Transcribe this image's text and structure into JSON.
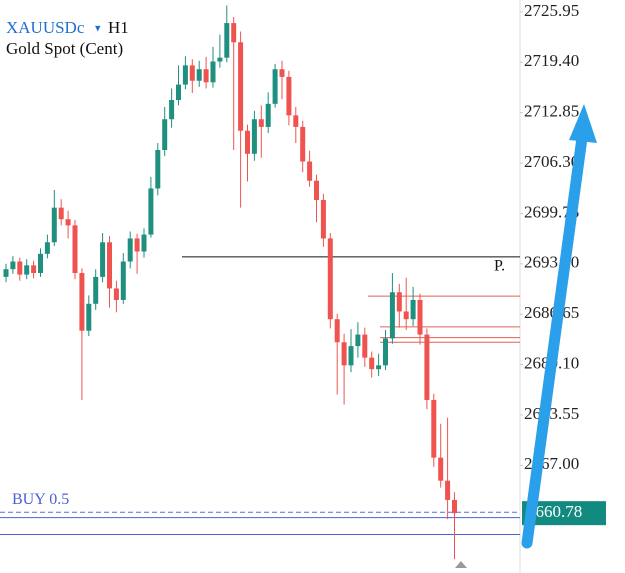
{
  "header": {
    "symbol": "XAUUSDc",
    "timeframe": "H1",
    "subtitle": "Gold Spot (Cent)"
  },
  "chart_data": {
    "type": "candlestick",
    "ylim": [
      2653.0,
      2727.5
    ],
    "yticks": [
      {
        "value": 2725.95,
        "label": "2725.95"
      },
      {
        "value": 2719.4,
        "label": "2719.40"
      },
      {
        "value": 2712.85,
        "label": "2712.85"
      },
      {
        "value": 2706.3,
        "label": "2706.30"
      },
      {
        "value": 2699.75,
        "label": "2699.75"
      },
      {
        "value": 2693.2,
        "label": "2693.20"
      },
      {
        "value": 2686.65,
        "label": "2686.65"
      },
      {
        "value": 2680.1,
        "label": "2680.10"
      },
      {
        "value": 2673.55,
        "label": "2673.55"
      },
      {
        "value": 2667.0,
        "label": "2667.00"
      }
    ],
    "up_color": "#1f8f80",
    "down_color": "#ef5350",
    "candles": [
      [
        2691.5,
        2693.2,
        2690.8,
        2692.5
      ],
      [
        2692.5,
        2694.2,
        2691.9,
        2693.5
      ],
      [
        2693.5,
        2694.0,
        2691.0,
        2691.8
      ],
      [
        2691.8,
        2693.8,
        2691.2,
        2693.0
      ],
      [
        2693.0,
        2693.6,
        2691.3,
        2692.0
      ],
      [
        2692.0,
        2695.2,
        2691.5,
        2694.5
      ],
      [
        2694.5,
        2697.0,
        2693.9,
        2696.0
      ],
      [
        2696.0,
        2702.8,
        2695.5,
        2700.5
      ],
      [
        2700.5,
        2701.6,
        2698.2,
        2699.0
      ],
      [
        2699.0,
        2700.1,
        2696.5,
        2698.2
      ],
      [
        2698.2,
        2698.9,
        2691.2,
        2692.0
      ],
      [
        2692.0,
        2692.6,
        2675.5,
        2684.5
      ],
      [
        2684.5,
        2689.1,
        2683.8,
        2688.0
      ],
      [
        2688.0,
        2692.5,
        2687.2,
        2691.5
      ],
      [
        2691.5,
        2697.2,
        2690.8,
        2696.0
      ],
      [
        2696.0,
        2696.8,
        2687.5,
        2690.0
      ],
      [
        2690.0,
        2691.0,
        2686.9,
        2688.5
      ],
      [
        2688.5,
        2694.6,
        2688.0,
        2693.5
      ],
      [
        2693.5,
        2697.4,
        2692.6,
        2696.5
      ],
      [
        2696.5,
        2697.1,
        2691.9,
        2694.8
      ],
      [
        2694.8,
        2697.8,
        2694.0,
        2697.0
      ],
      [
        2697.0,
        2704.5,
        2696.6,
        2703.0
      ],
      [
        2703.0,
        2708.9,
        2702.1,
        2708.0
      ],
      [
        2708.0,
        2713.6,
        2707.2,
        2712.0
      ],
      [
        2712.0,
        2716.0,
        2710.9,
        2714.5
      ],
      [
        2714.5,
        2719.0,
        2713.8,
        2716.5
      ],
      [
        2716.5,
        2720.2,
        2715.9,
        2719.0
      ],
      [
        2719.0,
        2719.8,
        2715.4,
        2717.0
      ],
      [
        2717.0,
        2719.6,
        2716.2,
        2718.5
      ],
      [
        2718.5,
        2720.1,
        2716.0,
        2716.8
      ],
      [
        2716.8,
        2721.4,
        2716.1,
        2719.5
      ],
      [
        2719.5,
        2723.0,
        2718.7,
        2720.0
      ],
      [
        2720.0,
        2726.8,
        2719.4,
        2724.5
      ],
      [
        2724.5,
        2725.3,
        2708.0,
        2722.0
      ],
      [
        2722.0,
        2723.4,
        2700.5,
        2710.5
      ],
      [
        2710.5,
        2711.3,
        2703.9,
        2707.5
      ],
      [
        2707.5,
        2713.1,
        2706.6,
        2712.0
      ],
      [
        2712.0,
        2713.8,
        2707.0,
        2711.0
      ],
      [
        2711.0,
        2715.5,
        2710.2,
        2714.0
      ],
      [
        2714.0,
        2719.2,
        2713.5,
        2718.5
      ],
      [
        2718.5,
        2719.6,
        2714.6,
        2717.5
      ],
      [
        2717.5,
        2718.3,
        2711.2,
        2712.5
      ],
      [
        2712.5,
        2713.6,
        2708.9,
        2711.0
      ],
      [
        2711.0,
        2711.8,
        2705.1,
        2706.5
      ],
      [
        2706.5,
        2707.9,
        2703.2,
        2704.0
      ],
      [
        2704.0,
        2704.8,
        2698.6,
        2701.5
      ],
      [
        2701.5,
        2702.3,
        2695.4,
        2696.5
      ],
      [
        2696.5,
        2697.2,
        2684.8,
        2686.0
      ],
      [
        2686.0,
        2686.7,
        2676.2,
        2683.0
      ],
      [
        2683.0,
        2684.1,
        2674.9,
        2680.0
      ],
      [
        2680.0,
        2684.7,
        2679.1,
        2682.5
      ],
      [
        2682.5,
        2685.6,
        2681.0,
        2684.0
      ],
      [
        2684.0,
        2684.9,
        2679.8,
        2681.0
      ],
      [
        2681.0,
        2681.8,
        2678.4,
        2679.5
      ],
      [
        2679.5,
        2681.5,
        2678.6,
        2680.0
      ],
      [
        2680.0,
        2684.6,
        2679.4,
        2683.5
      ],
      [
        2683.5,
        2692.0,
        2682.8,
        2689.5
      ],
      [
        2689.5,
        2690.6,
        2684.9,
        2687.0
      ],
      [
        2687.0,
        2691.4,
        2684.6,
        2686.0
      ],
      [
        2686.0,
        2690.2,
        2685.1,
        2688.5
      ],
      [
        2688.5,
        2689.3,
        2682.7,
        2684.0
      ],
      [
        2684.0,
        2684.8,
        2674.3,
        2675.5
      ],
      [
        2675.5,
        2676.3,
        2666.8,
        2668.0
      ],
      [
        2668.0,
        2672.4,
        2664.1,
        2665.0
      ],
      [
        2665.0,
        2673.2,
        2660.0,
        2662.5
      ],
      [
        2662.5,
        2663.5,
        2654.8,
        2660.78
      ]
    ],
    "levels": [
      {
        "price": 2694.1,
        "color": "#111111",
        "label": "P."
      },
      {
        "price": 2689.0,
        "color": "#e06050"
      },
      {
        "price": 2685.0,
        "color": "#e06050"
      },
      {
        "price": 2683.6,
        "color": "#e06050"
      },
      {
        "price": 2683.0,
        "color": "#e06050"
      },
      {
        "price": 2660.9,
        "color": "#5a6fd8",
        "label": "BUY 0.5"
      },
      {
        "price": 2660.2,
        "color": "#4a5fd0"
      },
      {
        "price": 2658.0,
        "color": "#4a5fd0"
      }
    ],
    "last_price": {
      "value": 2660.78,
      "label": "2660.78",
      "color": "#138a80"
    }
  }
}
